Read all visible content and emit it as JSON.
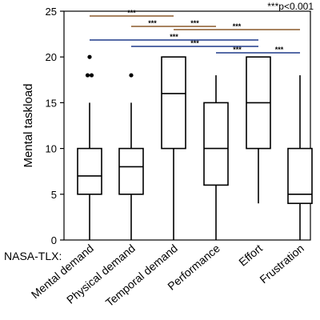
{
  "chart_data": {
    "type": "box",
    "ylabel": "Mental taskload",
    "xlabel_prefix": "NASA-TLX:",
    "ylim": [
      0,
      25
    ],
    "yticks": [
      0,
      5,
      10,
      15,
      20,
      25
    ],
    "categories": [
      "Mental demand",
      "Physical demand",
      "Temporal demand",
      "Performance",
      "Effort",
      "Frustration"
    ],
    "boxes": [
      {
        "min": 0,
        "q1": 5,
        "median": 7,
        "q3": 10,
        "max": 15,
        "outliers": [
          18,
          18,
          20
        ]
      },
      {
        "min": 0,
        "q1": 5,
        "median": 8,
        "q3": 10,
        "max": 15,
        "outliers": [
          18
        ]
      },
      {
        "min": 0,
        "q1": 10,
        "median": 16,
        "q3": 20,
        "max": 20,
        "outliers": []
      },
      {
        "min": 0,
        "q1": 6,
        "median": 10,
        "q3": 15,
        "max": 18,
        "outliers": []
      },
      {
        "min": 4,
        "q1": 10,
        "median": 15,
        "q3": 20,
        "max": 20,
        "outliers": []
      },
      {
        "min": 0,
        "q1": 4,
        "median": 5,
        "q3": 10,
        "max": 18,
        "outliers": []
      }
    ],
    "significance_note": "***p<0.001",
    "significance": [
      {
        "from": 0,
        "to": 2,
        "label": "***",
        "color": "#8B5A2B"
      },
      {
        "from": 2,
        "to": 3,
        "label": "***",
        "color": "#8B5A2B"
      },
      {
        "from": 1,
        "to": 2,
        "label": "***",
        "color": "#8B5A2B"
      },
      {
        "from": 2,
        "to": 5,
        "label": "***",
        "color": "#8B5A2B"
      },
      {
        "from": 0,
        "to": 4,
        "label": "***",
        "color": "#1F3A8A"
      },
      {
        "from": 1,
        "to": 4,
        "label": "***",
        "color": "#1F3A8A"
      },
      {
        "from": 3,
        "to": 4,
        "label": "***",
        "color": "#1F3A8A"
      },
      {
        "from": 4,
        "to": 5,
        "label": "***",
        "color": "#1F3A8A"
      }
    ],
    "grid": false,
    "legend": "none"
  }
}
